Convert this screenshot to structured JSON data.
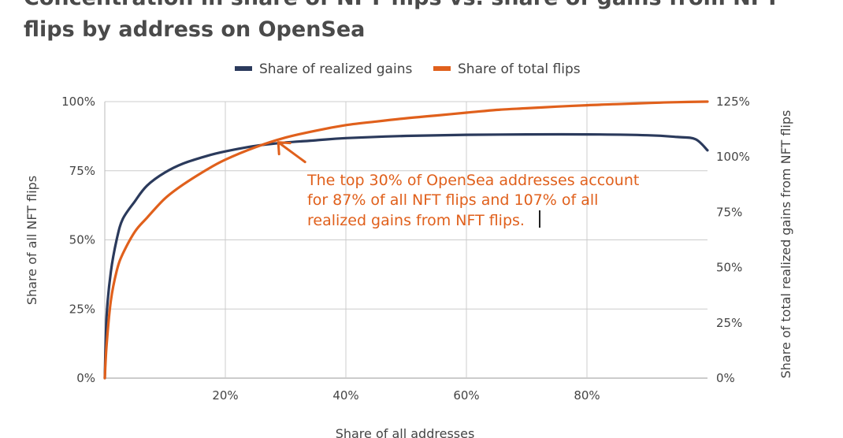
{
  "chart_data": {
    "type": "line",
    "title": "Concentration in share of NFT flips vs. share of gains from NFT flips by address on OpenSea",
    "xlabel": "Share of all addresses",
    "ylabel": "Share of all NFT flips",
    "y2label": "Share of total realized gains from NFT flips",
    "xlim": [
      0,
      100
    ],
    "ylim": [
      0,
      100
    ],
    "y2lim": [
      0,
      125
    ],
    "x_ticks": [
      "20%",
      "40%",
      "60%",
      "80%"
    ],
    "x_tick_values": [
      20,
      40,
      60,
      80
    ],
    "y_ticks": [
      "0%",
      "25%",
      "50%",
      "75%",
      "100%"
    ],
    "y_tick_values": [
      0,
      25,
      50,
      75,
      100
    ],
    "y2_ticks": [
      "0%",
      "25%",
      "50%",
      "75%",
      "100%",
      "125%"
    ],
    "y2_tick_values": [
      0,
      25,
      50,
      75,
      100,
      125
    ],
    "grid": true,
    "legend_position": "top-center",
    "series": [
      {
        "name": "Share of realized gains",
        "axis": "right",
        "color": "#2b3a5c",
        "x": [
          0,
          0.3,
          1,
          2,
          3,
          5,
          7,
          10,
          13,
          17,
          20,
          25,
          30,
          35,
          40,
          50,
          60,
          70,
          80,
          90,
          95,
          98,
          100
        ],
        "y": [
          0,
          28,
          48,
          63,
          72,
          80,
          87,
          93,
          97,
          100.5,
          102.5,
          105,
          106.5,
          107.5,
          108.5,
          109.5,
          110,
          110.2,
          110.2,
          109.8,
          109,
          108,
          103
        ]
      },
      {
        "name": "Share of total flips",
        "axis": "left",
        "color": "#e0601c",
        "x": [
          0,
          0.3,
          1,
          2,
          3,
          5,
          7,
          10,
          13,
          17,
          20,
          25,
          30,
          35,
          40,
          45,
          50,
          55,
          60,
          65,
          70,
          75,
          80,
          85,
          90,
          95,
          100
        ],
        "y": [
          0,
          12,
          28,
          39,
          45,
          53,
          58,
          65,
          70,
          75.5,
          79,
          83.5,
          87,
          89.5,
          91.5,
          92.8,
          94,
          95,
          96,
          97,
          97.6,
          98.2,
          98.7,
          99.1,
          99.5,
          99.8,
          100
        ]
      }
    ],
    "annotation": {
      "lines": [
        "The top 30% of OpenSea addresses account",
        "for 87% of all NFT flips and 107% of all",
        "realized gains from NFT flips."
      ],
      "arrow_target": {
        "x": 28,
        "y": 87
      },
      "color": "#e0601c"
    }
  }
}
